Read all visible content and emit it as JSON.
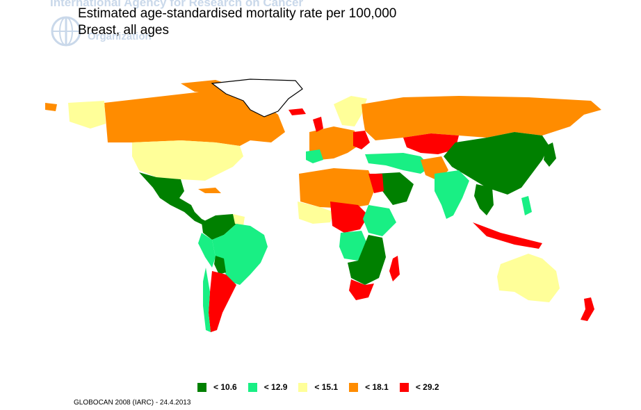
{
  "watermark": {
    "agency": "International Agency for Research on Cancer",
    "org": "Organization"
  },
  "title": {
    "line1": "Estimated age-standardised mortality rate per 100,000",
    "line2": "Breast, all ages"
  },
  "colors": {
    "green": "#008000",
    "mint": "#19ef84",
    "yellow": "#ffff99",
    "orange": "#ff8c00",
    "red": "#ff0000"
  },
  "legend": [
    {
      "label": "< 10.6",
      "color": "#008000"
    },
    {
      "label": "< 12.9",
      "color": "#19ef84"
    },
    {
      "label": "< 15.1",
      "color": "#ffff99"
    },
    {
      "label": "< 18.1",
      "color": "#ff8c00"
    },
    {
      "label": "< 29.2",
      "color": "#ff0000"
    }
  ],
  "footer": "GLOBOCAN 2008 (IARC) - 24.4.2013"
}
